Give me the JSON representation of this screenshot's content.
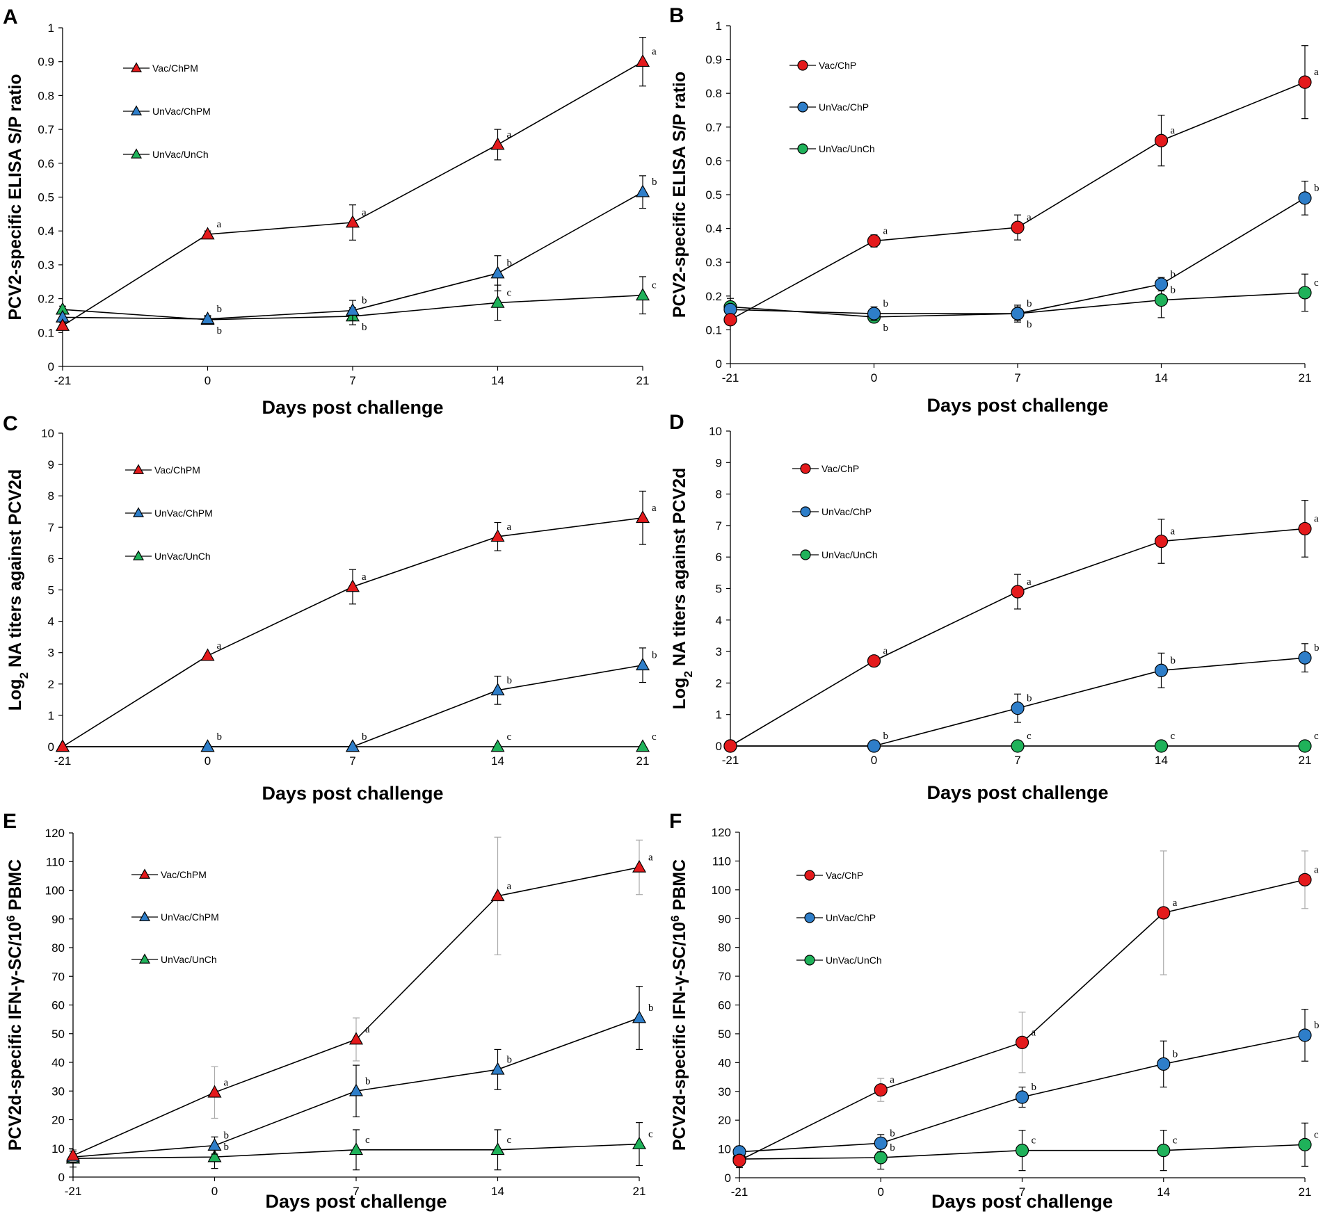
{
  "colors": {
    "vaccinated": "#e41a1c",
    "unvaccinated_challenged": "#2e7ec9",
    "unchallenged": "#1fb25a",
    "line": "#000000",
    "error_faint": "#aaaaaa"
  },
  "chart_data": [
    {
      "id": "A",
      "letter": "A",
      "type": "line",
      "marker": "triangle",
      "ylabel": "PCV2-specific ELISA S/P ratio",
      "ylabel_sub": "",
      "xlabel": "Days post challenge",
      "x": [
        -21,
        0,
        7,
        14,
        21
      ],
      "xticks": [
        "-21",
        "0",
        "7",
        "14",
        "21"
      ],
      "ylim": [
        0,
        1
      ],
      "yticks": [
        "0",
        "0.1",
        "0.2",
        "0.3",
        "0.4",
        "0.5",
        "0.6",
        "0.7",
        "0.8",
        "0.9",
        "1"
      ],
      "series": [
        {
          "name": "Vac/ChPM",
          "color": "#e41a1c",
          "values": [
            0.12,
            0.39,
            0.425,
            0.655,
            0.9
          ],
          "errors": [
            0.01,
            0.01,
            0.052,
            0.045,
            0.072
          ],
          "sig": [
            "",
            "a",
            "a",
            "a",
            "a"
          ],
          "sig_pos": [
            "",
            "above",
            "above",
            "above",
            "above"
          ]
        },
        {
          "name": "UnVac/ChPM",
          "color": "#2e7ec9",
          "values": [
            0.145,
            0.14,
            0.165,
            0.275,
            0.515
          ],
          "errors": [
            0.01,
            0.01,
            0.03,
            0.052,
            0.048
          ],
          "sig": [
            "",
            "b",
            "b",
            "b",
            "b"
          ],
          "sig_pos": [
            "",
            "above",
            "above",
            "above",
            "above"
          ]
        },
        {
          "name": "UnVac/UnCh",
          "color": "#1fb25a",
          "values": [
            0.168,
            0.138,
            0.148,
            0.188,
            0.21
          ],
          "errors": [
            0.01,
            0.01,
            0.025,
            0.052,
            0.055
          ],
          "sig": [
            "",
            "b",
            "b",
            "c",
            "c"
          ],
          "sig_pos": [
            "",
            "below",
            "below",
            "above",
            "above"
          ]
        }
      ]
    },
    {
      "id": "B",
      "letter": "B",
      "type": "line",
      "marker": "circle",
      "ylabel": "PCV2-specific ELISA S/P ratio",
      "ylabel_sub": "",
      "xlabel": "Days post challenge",
      "x": [
        -21,
        0,
        7,
        14,
        21
      ],
      "xticks": [
        "-21",
        "0",
        "7",
        "14",
        "21"
      ],
      "ylim": [
        0,
        1
      ],
      "yticks": [
        "0",
        "0.1",
        "0.2",
        "0.3",
        "0.4",
        "0.5",
        "0.6",
        "0.7",
        "0.8",
        "0.9",
        "1"
      ],
      "series": [
        {
          "name": "Vac/ChP",
          "color": "#e41a1c",
          "values": [
            0.13,
            0.363,
            0.403,
            0.66,
            0.833
          ],
          "errors": [
            0.01,
            0.018,
            0.037,
            0.075,
            0.108
          ],
          "sig": [
            "",
            "a",
            "a",
            "a",
            "a"
          ],
          "sig_pos": [
            "",
            "above",
            "above",
            "above",
            "above"
          ]
        },
        {
          "name": "UnVac/ChP",
          "color": "#2e7ec9",
          "values": [
            0.16,
            0.148,
            0.148,
            0.235,
            0.49
          ],
          "errors": [
            0.01,
            0.02,
            0.02,
            0.02,
            0.05
          ],
          "sig": [
            "",
            "b",
            "b",
            "b",
            "b"
          ],
          "sig_pos": [
            "",
            "above",
            "above",
            "above",
            "above"
          ]
        },
        {
          "name": "UnVac/UnCh",
          "color": "#1fb25a",
          "values": [
            0.168,
            0.138,
            0.148,
            0.188,
            0.21
          ],
          "errors": [
            0.025,
            0.01,
            0.025,
            0.052,
            0.055
          ],
          "sig": [
            "",
            "b",
            "b",
            "b",
            "c"
          ],
          "sig_pos": [
            "",
            "below",
            "below",
            "above",
            "above"
          ]
        }
      ]
    },
    {
      "id": "C",
      "letter": "C",
      "type": "line",
      "marker": "triangle",
      "ylabel": "Log",
      "ylabel_sub": "2",
      "ylabel_rest": " NA titers against PCV2d",
      "xlabel": "Days post challenge",
      "x": [
        -21,
        0,
        7,
        14,
        21
      ],
      "xticks": [
        "-21",
        "0",
        "7",
        "14",
        "21"
      ],
      "ylim": [
        0,
        10
      ],
      "yticks": [
        "0",
        "1",
        "2",
        "3",
        "4",
        "5",
        "6",
        "7",
        "8",
        "9",
        "10"
      ],
      "series": [
        {
          "name": "Vac/ChPM",
          "color": "#e41a1c",
          "values": [
            0,
            2.9,
            5.1,
            6.7,
            7.3
          ],
          "errors": [
            0,
            0,
            0.55,
            0.45,
            0.85
          ],
          "sig": [
            "",
            "a",
            "a",
            "a",
            "a"
          ],
          "sig_pos": [
            "",
            "above",
            "above",
            "above",
            "above"
          ]
        },
        {
          "name": "UnVac/ChPM",
          "color": "#2e7ec9",
          "values": [
            0,
            0,
            0,
            1.8,
            2.6
          ],
          "errors": [
            0,
            0,
            0,
            0.45,
            0.55
          ],
          "sig": [
            "",
            "",
            "",
            "b",
            "b"
          ],
          "sig_pos": [
            "",
            "above",
            "above",
            "above",
            "above"
          ]
        },
        {
          "name": "UnVac/UnCh",
          "color": "#1fb25a",
          "values": [
            0,
            0,
            0,
            0,
            0
          ],
          "errors": [
            0,
            0,
            0,
            0,
            0
          ],
          "sig": [
            "",
            "b",
            "b",
            "c",
            "c"
          ],
          "sig_pos": [
            "",
            "above",
            "above",
            "above",
            "above"
          ]
        }
      ]
    },
    {
      "id": "D",
      "letter": "D",
      "type": "line",
      "marker": "circle",
      "ylabel": "Log",
      "ylabel_sub": "2",
      "ylabel_rest": " NA titers against PCV2d",
      "xlabel": "Days post challenge",
      "x": [
        -21,
        0,
        7,
        14,
        21
      ],
      "xticks": [
        "-21",
        "0",
        "7",
        "14",
        "21"
      ],
      "ylim": [
        0,
        10
      ],
      "yticks": [
        "0",
        "1",
        "2",
        "3",
        "4",
        "5",
        "6",
        "7",
        "8",
        "9",
        "10"
      ],
      "series": [
        {
          "name": "Vac/ChP",
          "color": "#e41a1c",
          "values": [
            0,
            2.7,
            4.9,
            6.5,
            6.9
          ],
          "errors": [
            0,
            0,
            0.55,
            0.7,
            0.9
          ],
          "sig": [
            "",
            "a",
            "a",
            "a",
            "a"
          ],
          "sig_pos": [
            "",
            "above",
            "above",
            "above",
            "above"
          ]
        },
        {
          "name": "UnVac/ChP",
          "color": "#2e7ec9",
          "values": [
            0,
            0,
            1.2,
            2.4,
            2.8
          ],
          "errors": [
            0,
            0,
            0.45,
            0.55,
            0.45
          ],
          "sig": [
            "",
            "",
            "b",
            "b",
            "b"
          ],
          "sig_pos": [
            "",
            "above",
            "above",
            "above",
            "above"
          ]
        },
        {
          "name": "UnVac/UnCh",
          "color": "#1fb25a",
          "values": [
            0,
            0,
            0,
            0,
            0
          ],
          "errors": [
            0,
            0,
            0,
            0,
            0
          ],
          "sig": [
            "",
            "b",
            "c",
            "c",
            "c"
          ],
          "sig_pos": [
            "",
            "above",
            "above",
            "above",
            "above"
          ]
        }
      ]
    },
    {
      "id": "E",
      "letter": "E",
      "type": "line",
      "marker": "triangle",
      "ylabel": "PCV2d-specific IFN-γ-SC/10",
      "ylabel_sup": "6",
      "ylabel_rest": " PBMC",
      "xlabel": "Days post challenge",
      "x": [
        -21,
        0,
        7,
        14,
        21
      ],
      "xticks": [
        "-21",
        "0",
        "7",
        "14",
        "21"
      ],
      "ylim": [
        0,
        120
      ],
      "yticks": [
        "0",
        "10",
        "20",
        "30",
        "40",
        "50",
        "60",
        "70",
        "80",
        "90",
        "100",
        "110",
        "120"
      ],
      "series": [
        {
          "name": "Vac/ChPM",
          "color": "#e41a1c",
          "values": [
            7.5,
            29.5,
            48,
            98,
            108
          ],
          "errors": [
            2,
            9,
            7.5,
            20.5,
            9.5
          ],
          "errors_faint": true,
          "sig": [
            "",
            "a",
            "a",
            "a",
            "a"
          ],
          "sig_pos": [
            "",
            "above",
            "above",
            "above",
            "above"
          ]
        },
        {
          "name": "UnVac/ChPM",
          "color": "#2e7ec9",
          "values": [
            7,
            11,
            30,
            37.5,
            55.5
          ],
          "errors": [
            2,
            3,
            9,
            7,
            11
          ],
          "sig": [
            "",
            "b",
            "b",
            "b",
            "b"
          ],
          "sig_pos": [
            "",
            "above",
            "above",
            "above",
            "above"
          ]
        },
        {
          "name": "UnVac/UnCh",
          "color": "#1fb25a",
          "values": [
            6.5,
            7,
            9.5,
            9.5,
            11.5
          ],
          "errors": [
            3,
            4,
            7,
            7,
            7.5
          ],
          "sig": [
            "",
            "b",
            "c",
            "c",
            "c"
          ],
          "sig_pos": [
            "",
            "above",
            "above",
            "above",
            "above"
          ]
        }
      ]
    },
    {
      "id": "F",
      "letter": "F",
      "type": "line",
      "marker": "circle",
      "ylabel": "PCV2d-specific IFN-γ-SC/10",
      "ylabel_sup": "6",
      "ylabel_rest": " PBMC",
      "xlabel": "Days post challenge",
      "x": [
        -21,
        0,
        7,
        14,
        21
      ],
      "xticks": [
        "-21",
        "0",
        "7",
        "14",
        "21"
      ],
      "ylim": [
        0,
        120
      ],
      "yticks": [
        "0",
        "10",
        "20",
        "30",
        "40",
        "50",
        "60",
        "70",
        "80",
        "90",
        "100",
        "110",
        "120"
      ],
      "series": [
        {
          "name": "Vac/ChP",
          "color": "#e41a1c",
          "values": [
            6,
            30.5,
            47,
            92,
            103.5
          ],
          "errors": [
            2,
            4,
            10.5,
            21.5,
            10
          ],
          "errors_faint": true,
          "sig": [
            "",
            "a",
            "a",
            "a",
            "a"
          ],
          "sig_pos": [
            "",
            "above",
            "above",
            "above",
            "above"
          ]
        },
        {
          "name": "UnVac/ChP",
          "color": "#2e7ec9",
          "values": [
            9,
            12,
            28,
            39.5,
            49.5
          ],
          "errors": [
            2,
            3,
            3.5,
            8,
            9
          ],
          "sig": [
            "",
            "b",
            "b",
            "b",
            "b"
          ],
          "sig_pos": [
            "",
            "above",
            "above",
            "above",
            "above"
          ]
        },
        {
          "name": "UnVac/UnCh",
          "color": "#1fb25a",
          "values": [
            6.5,
            7,
            9.5,
            9.5,
            11.5
          ],
          "errors": [
            3,
            4,
            7,
            7,
            7.5
          ],
          "sig": [
            "",
            "b",
            "c",
            "c",
            "c"
          ],
          "sig_pos": [
            "",
            "above",
            "above",
            "above",
            "above"
          ]
        }
      ]
    }
  ]
}
